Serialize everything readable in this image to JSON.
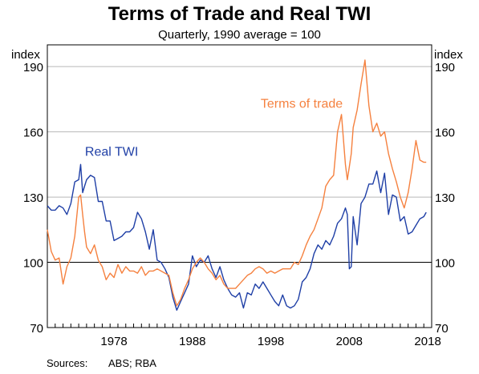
{
  "title": "Terms of Trade and Real TWI",
  "subtitle": "Quarterly, 1990 average = 100",
  "ylabel_left": "index",
  "ylabel_right": "index",
  "sources_label": "Sources:",
  "sources_text": "ABS; RBA",
  "colors": {
    "real_twi": "#1f3fa6",
    "terms_of_trade": "#f5813f",
    "grid": "#b9b9b9",
    "axis": "#000000"
  },
  "chart_data": {
    "type": "line",
    "title": "Terms of Trade and Real TWI",
    "subtitle": "Quarterly, 1990 average = 100",
    "ylabel": "index",
    "xlim": [
      1970,
      2019
    ],
    "ylim": [
      70,
      200
    ],
    "yticks": [
      70,
      100,
      130,
      160,
      190
    ],
    "xticks": [
      1978,
      1988,
      1998,
      2008,
      2018
    ],
    "grid": "horizontal",
    "series": [
      {
        "name": "Real TWI",
        "color": "#1f3fa6",
        "x": [
          1970.0,
          1970.5,
          1971.0,
          1971.5,
          1972.0,
          1972.5,
          1973.0,
          1973.5,
          1974.0,
          1974.25,
          1974.5,
          1974.75,
          1975.0,
          1975.5,
          1976.0,
          1976.5,
          1977.0,
          1977.5,
          1978.0,
          1978.5,
          1979.0,
          1979.5,
          1980.0,
          1980.5,
          1981.0,
          1981.5,
          1982.0,
          1982.5,
          1983.0,
          1983.5,
          1984.0,
          1984.5,
          1985.0,
          1985.5,
          1986.0,
          1986.5,
          1987.0,
          1987.5,
          1988.0,
          1988.5,
          1989.0,
          1989.5,
          1990.0,
          1990.5,
          1991.0,
          1991.5,
          1992.0,
          1992.5,
          1993.0,
          1993.5,
          1994.0,
          1994.5,
          1995.0,
          1995.5,
          1996.0,
          1996.5,
          1997.0,
          1997.5,
          1998.0,
          1998.5,
          1999.0,
          1999.5,
          2000.0,
          2000.5,
          2001.0,
          2001.5,
          2002.0,
          2002.5,
          2003.0,
          2003.5,
          2004.0,
          2004.5,
          2005.0,
          2005.5,
          2006.0,
          2006.5,
          2007.0,
          2007.5,
          2008.0,
          2008.25,
          2008.5,
          2008.75,
          2009.0,
          2009.5,
          2010.0,
          2010.5,
          2011.0,
          2011.5,
          2012.0,
          2012.5,
          2013.0,
          2013.5,
          2014.0,
          2014.5,
          2015.0,
          2015.5,
          2016.0,
          2016.5,
          2017.0,
          2017.5,
          2018.0,
          2018.3
        ],
        "values": [
          126,
          124,
          124,
          126,
          125,
          122,
          127,
          137,
          138,
          145,
          132,
          135,
          138,
          140,
          139,
          128,
          128,
          119,
          119,
          110,
          111,
          112,
          114,
          114,
          116,
          123,
          120,
          114,
          106,
          115,
          101,
          100,
          97,
          93,
          84,
          78,
          82,
          86,
          90,
          103,
          98,
          101,
          100,
          103,
          97,
          93,
          98,
          92,
          88,
          85,
          84,
          86,
          79,
          86,
          85,
          90,
          88,
          91,
          88,
          85,
          82,
          80,
          85,
          80,
          79,
          80,
          83,
          91,
          93,
          97,
          104,
          108,
          106,
          110,
          108,
          112,
          118,
          120,
          125,
          122,
          97,
          98,
          121,
          108,
          127,
          130,
          136,
          136,
          142,
          132,
          141,
          122,
          131,
          130,
          119,
          121,
          113,
          114,
          117,
          120,
          121,
          123
        ]
      },
      {
        "name": "Terms of trade",
        "color": "#f5813f",
        "x": [
          1970.0,
          1970.5,
          1971.0,
          1971.5,
          1972.0,
          1972.5,
          1973.0,
          1973.5,
          1974.0,
          1974.25,
          1974.5,
          1974.75,
          1975.0,
          1975.5,
          1976.0,
          1976.5,
          1977.0,
          1977.5,
          1978.0,
          1978.5,
          1979.0,
          1979.5,
          1980.0,
          1980.5,
          1981.0,
          1981.5,
          1982.0,
          1982.5,
          1983.0,
          1983.5,
          1984.0,
          1984.5,
          1985.0,
          1985.5,
          1986.0,
          1986.5,
          1987.0,
          1987.5,
          1988.0,
          1988.5,
          1989.0,
          1989.5,
          1990.0,
          1990.5,
          1991.0,
          1991.5,
          1992.0,
          1992.5,
          1993.0,
          1993.5,
          1994.0,
          1994.5,
          1995.0,
          1995.5,
          1996.0,
          1996.5,
          1997.0,
          1997.5,
          1998.0,
          1998.5,
          1999.0,
          1999.5,
          2000.0,
          2000.5,
          2001.0,
          2001.5,
          2002.0,
          2002.5,
          2003.0,
          2003.5,
          2004.0,
          2004.5,
          2005.0,
          2005.5,
          2006.0,
          2006.5,
          2007.0,
          2007.5,
          2008.0,
          2008.25,
          2008.5,
          2008.75,
          2009.0,
          2009.5,
          2010.0,
          2010.5,
          2011.0,
          2011.5,
          2012.0,
          2012.5,
          2013.0,
          2013.5,
          2014.0,
          2014.5,
          2015.0,
          2015.5,
          2016.0,
          2016.5,
          2017.0,
          2017.5,
          2018.0,
          2018.3
        ],
        "values": [
          115,
          105,
          101,
          102,
          90,
          98,
          102,
          112,
          130,
          131,
          122,
          114,
          107,
          104,
          108,
          101,
          98,
          92,
          95,
          93,
          99,
          95,
          98,
          96,
          96,
          95,
          98,
          94,
          96,
          96,
          97,
          96,
          95,
          94,
          86,
          80,
          83,
          88,
          92,
          97,
          100,
          102,
          100,
          97,
          95,
          92,
          94,
          90,
          88,
          88,
          88,
          90,
          92,
          94,
          95,
          97,
          98,
          97,
          95,
          96,
          95,
          96,
          97,
          97,
          97,
          100,
          99,
          103,
          108,
          112,
          115,
          120,
          125,
          135,
          138,
          140,
          160,
          168,
          145,
          138,
          144,
          150,
          162,
          170,
          182,
          193,
          172,
          160,
          164,
          158,
          160,
          150,
          143,
          137,
          130,
          125,
          132,
          143,
          156,
          147,
          146,
          146
        ]
      }
    ],
    "annotations": [
      {
        "text": "Real TWI",
        "series": "Real TWI"
      },
      {
        "text": "Terms of trade",
        "series": "Terms of trade"
      }
    ]
  }
}
